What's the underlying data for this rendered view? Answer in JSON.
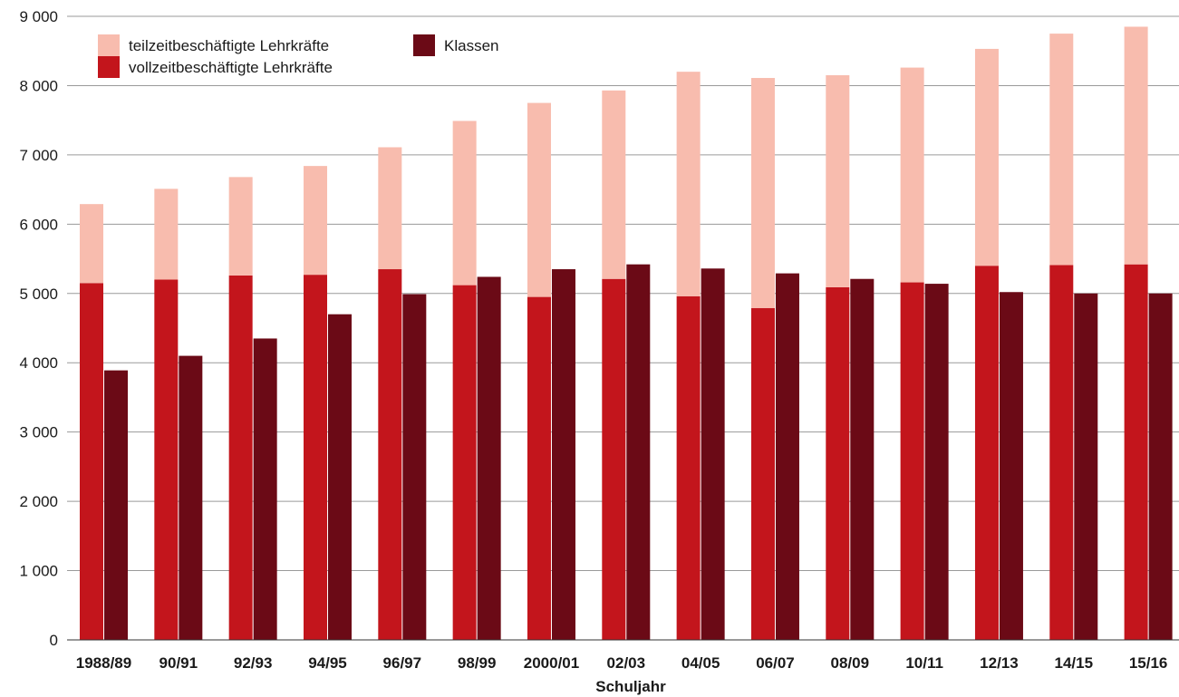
{
  "chart_data": {
    "type": "bar",
    "stacked_series": [
      "vollzeitbeschäftigte Lehrkräfte",
      "teilzeitbeschäftigte Lehrkräfte"
    ],
    "categories": [
      "1988/89",
      "90/91",
      "92/93",
      "94/95",
      "96/97",
      "98/99",
      "2000/01",
      "02/03",
      "04/05",
      "06/07",
      "08/09",
      "10/11",
      "12/13",
      "14/15",
      "15/16"
    ],
    "series": [
      {
        "name": "vollzeitbeschäftigte Lehrkräfte",
        "color": "#c3151c",
        "stack": "lehrkraefte",
        "values": [
          5150,
          5200,
          5260,
          5270,
          5350,
          5120,
          4950,
          5210,
          4960,
          4790,
          5090,
          5160,
          5400,
          5410,
          5420
        ]
      },
      {
        "name": "teilzeitbeschäftigte Lehrkräfte",
        "color": "#f8bcae",
        "stack": "lehrkraefte",
        "values": [
          1140,
          1310,
          1420,
          1570,
          1760,
          2370,
          2800,
          2720,
          3240,
          3320,
          3060,
          3100,
          3130,
          3340,
          3430
        ]
      },
      {
        "name": "Klassen",
        "color": "#6b0a16",
        "stack": "klassen",
        "values": [
          3890,
          4100,
          4350,
          4700,
          4990,
          5240,
          5350,
          5420,
          5360,
          5290,
          5210,
          5140,
          5020,
          5000,
          5000
        ]
      }
    ],
    "xlabel": "Schuljahr",
    "ylabel": "",
    "ylim": [
      0,
      9000
    ],
    "yticks": [
      0,
      1000,
      2000,
      3000,
      4000,
      5000,
      6000,
      7000,
      8000,
      9000
    ],
    "ytick_labels": [
      "0",
      "1 000",
      "2 000",
      "3 000",
      "4 000",
      "5 000",
      "6 000",
      "7 000",
      "8 000",
      "9 000"
    ],
    "grid": true,
    "legend": {
      "placement": "top-left",
      "entries": [
        "teilzeitbeschäftigte Lehrkräfte",
        "vollzeitbeschäftigte Lehrkräfte",
        "Klassen"
      ]
    }
  }
}
